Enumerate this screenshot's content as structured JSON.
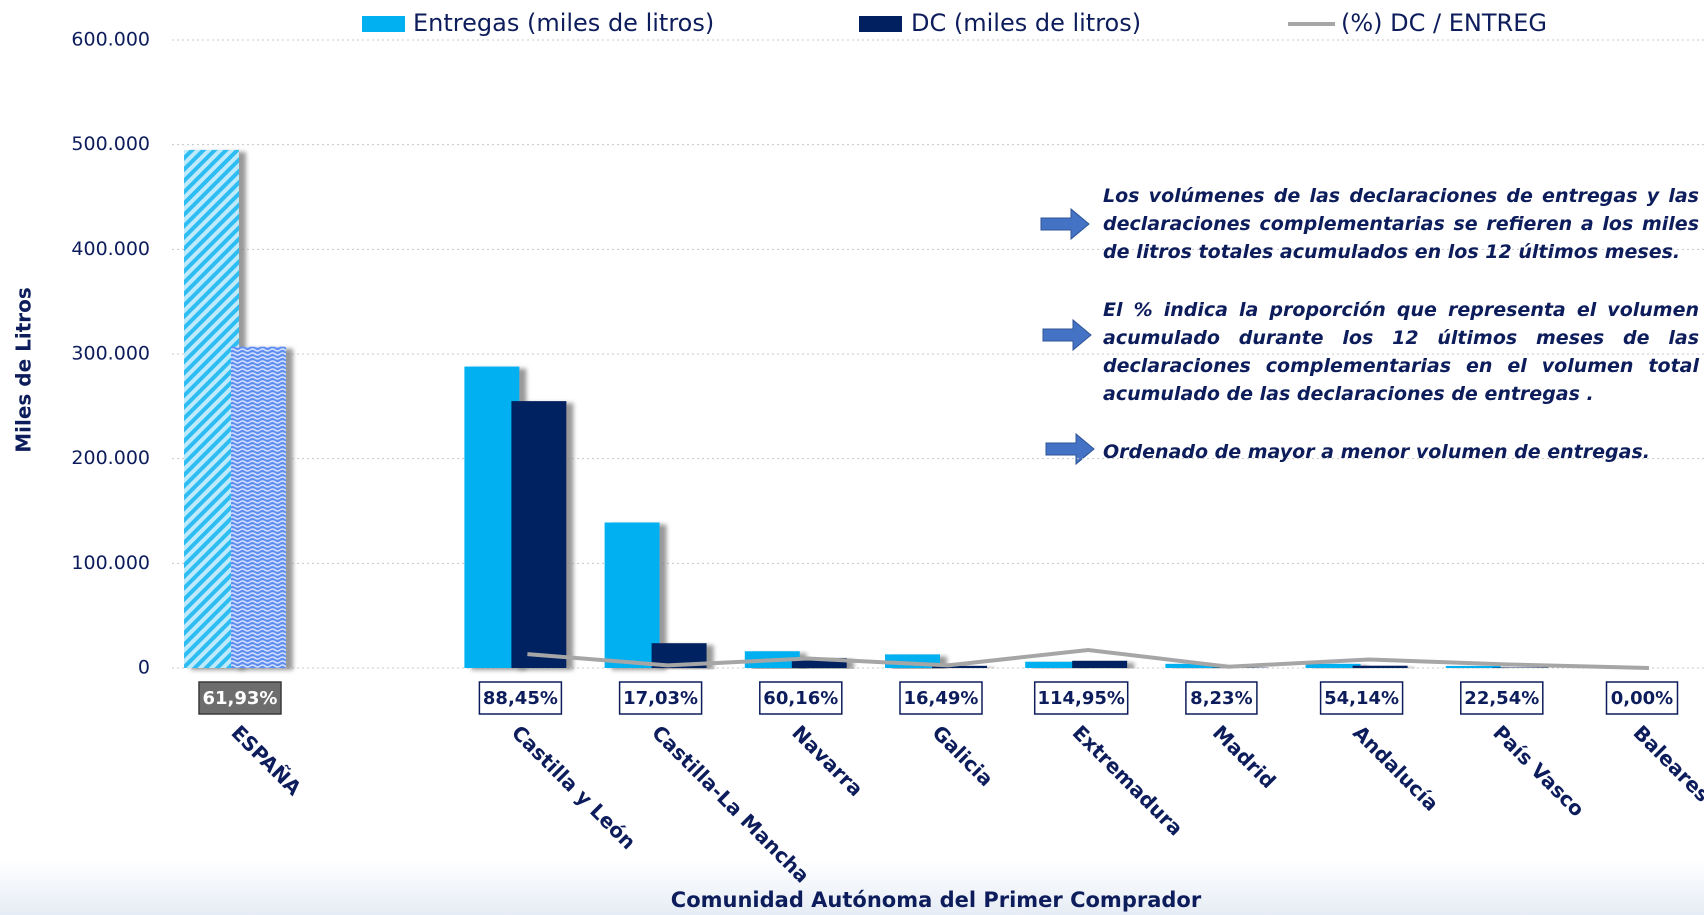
{
  "chart_data": {
    "type": "bar",
    "categories": [
      "ESPAÑA",
      null,
      "Castilla y León",
      "Castilla-La Mancha",
      "Navarra",
      "Galicia",
      "Extremadura",
      "Madrid",
      "Andalucía",
      "País Vasco",
      "Baleares"
    ],
    "series": [
      {
        "name": "Entregas (miles de litros)",
        "color": "#00b0f0",
        "values": [
          495000,
          null,
          288000,
          139000,
          16000,
          13000,
          6000,
          4000,
          4000,
          2000,
          500
        ]
      },
      {
        "name": "DC (miles de litros)",
        "color": "#002060",
        "values": [
          307000,
          null,
          255000,
          23700,
          9600,
          2100,
          6900,
          330,
          2200,
          450,
          0
        ]
      },
      {
        "name": "(%) DC / ENTREG",
        "color": "#a6a6a6",
        "axis": "y2",
        "type": "line",
        "values": [
          61.93,
          null,
          88.45,
          17.03,
          60.16,
          16.49,
          114.95,
          8.23,
          54.14,
          22.54,
          0
        ],
        "value_labels": [
          "61,93%",
          null,
          "88,45%",
          "17,03%",
          "60,16%",
          "16,49%",
          "114,95%",
          "8,23%",
          "54,14%",
          "22,54%",
          "0,00%"
        ]
      }
    ],
    "ylim": [
      0,
      600000
    ],
    "yticks": [
      0,
      {
        "value": 100000,
        "label": "100.000"
      },
      {
        "value": 200000,
        "label": "200.000"
      },
      {
        "value": 300000,
        "label": "300.000"
      },
      {
        "value": 400000,
        "label": "400.000"
      },
      {
        "value": 500000,
        "label": "500.000"
      },
      {
        "value": 600000,
        "label": "600.000"
      }
    ],
    "y2lim": [
      0,
      4000
    ],
    "grid": true,
    "legend": "top",
    "y_label": "Miles de Litros",
    "x_label": "Comunidad Autónoma del Primer Comprador",
    "annotations": [
      "Los volúmenes de las declaraciones de entregas y las declaraciones complementarias se refieren a los miles de litros totales acumulados en los 12 últimos meses.",
      "El %  indica la proporción que representa el volumen acumulado durante los 12 últimos meses de las declaraciones complementarias en el volumen total acumulado de las declaraciones de entregas .",
      "Ordenado de mayor a menor volumen de entregas."
    ]
  }
}
